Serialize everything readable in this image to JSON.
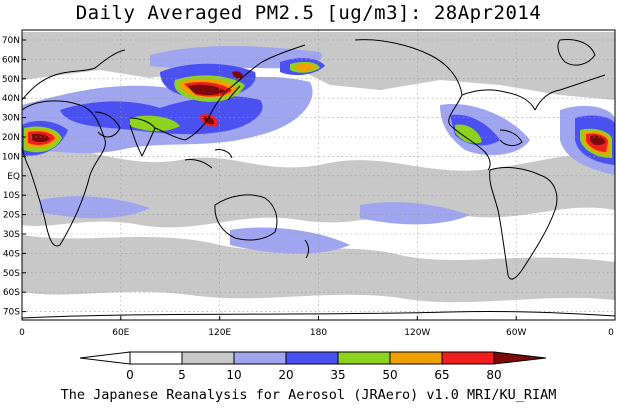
{
  "title": "Daily Averaged PM2.5 [ug/m3]: 28Apr2014",
  "footer": "The Japanese Reanalysis for Aerosol (JRAero) v1.0 MRI/KU_RIAM",
  "map": {
    "lat_labels": [
      "70N",
      "60N",
      "50N",
      "40N",
      "30N",
      "20N",
      "10N",
      "EQ",
      "10S",
      "20S",
      "30S",
      "40S",
      "50S",
      "60S",
      "70S"
    ],
    "lon_labels": [
      "0",
      "60E",
      "120E",
      "180",
      "120W",
      "60W",
      "0"
    ]
  },
  "legend": {
    "ticks": [
      "0",
      "5",
      "10",
      "20",
      "35",
      "50",
      "65",
      "80"
    ],
    "colors": [
      "#ffffff",
      "#c8c8c8",
      "#a0a5f0",
      "#4b50f0",
      "#8cd21e",
      "#f0a000",
      "#f01e1e",
      "#7d0a0a"
    ]
  }
}
